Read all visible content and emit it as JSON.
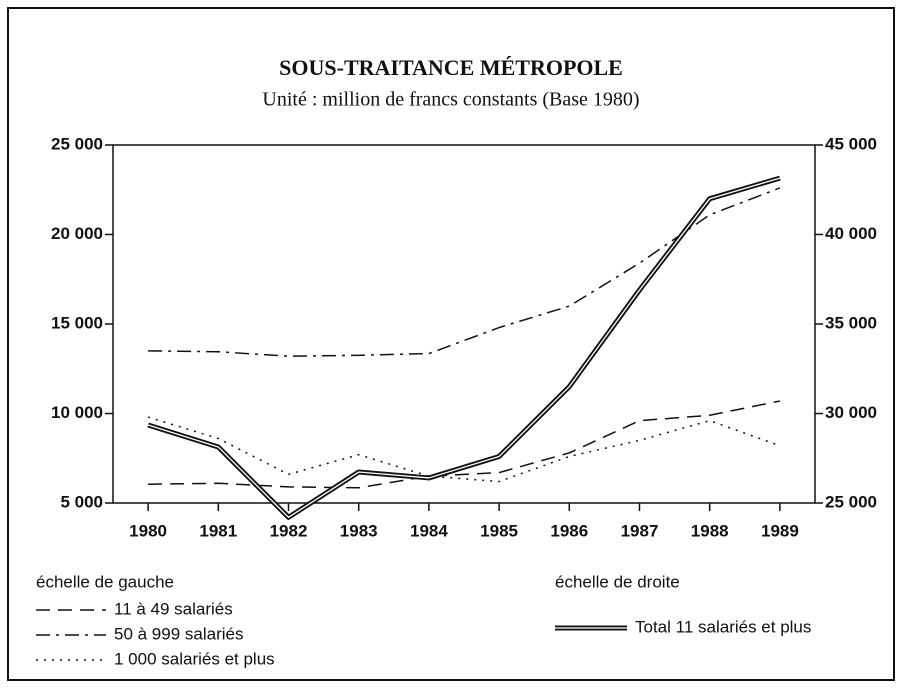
{
  "chart_data": {
    "type": "line",
    "title": "SOUS-TRAITANCE MÉTROPOLE",
    "subtitle": "Unité : million de francs constants (Base 1980)",
    "categories": [
      "1980",
      "1981",
      "1982",
      "1983",
      "1984",
      "1985",
      "1986",
      "1987",
      "1988",
      "1989"
    ],
    "legend_groups": [
      "échelle de gauche",
      "échelle de droite"
    ],
    "series": [
      {
        "name": "11 à 49 salariés",
        "color": "#111111",
        "dash": "dashed",
        "values": [
          6050,
          6100,
          5900,
          5850,
          6500,
          6700,
          7800,
          9600,
          9900,
          10700
        ]
      },
      {
        "name": "50 à 999 salariés",
        "color": "#111111",
        "dash": "dashdot",
        "values": [
          13500,
          13450,
          13200,
          13250,
          13350,
          14800,
          16000,
          18400,
          21100,
          22600
        ]
      },
      {
        "name": "1 000 salariés et plus",
        "color": "#111111",
        "dash": "dotted",
        "values": [
          9800,
          8600,
          6600,
          7700,
          6500,
          6200,
          7600,
          8500,
          9600,
          8200
        ]
      },
      {
        "name": "Total 11 salariés et plus",
        "color": "#111111",
        "dash": "double",
        "axis": "y2",
        "values": [
          29360,
          28130,
          24200,
          26730,
          26400,
          27600,
          31500,
          36900,
          42000,
          43150
        ]
      }
    ],
    "ylim": [
      5000,
      25000
    ],
    "yticks": [
      {
        "value": 5000,
        "label": "5 000"
      },
      {
        "value": 10000,
        "label": "10 000"
      },
      {
        "value": 15000,
        "label": "15 000"
      },
      {
        "value": 20000,
        "label": "20 000"
      },
      {
        "value": 25000,
        "label": "25 000"
      }
    ],
    "y2lim": [
      25000,
      45000
    ],
    "y2ticks": [
      {
        "value": 25000,
        "label": "25 000"
      },
      {
        "value": 30000,
        "label": "30 000"
      },
      {
        "value": 35000,
        "label": "35 000"
      },
      {
        "value": 40000,
        "label": "40 000"
      },
      {
        "value": 45000,
        "label": "45 000"
      }
    ]
  }
}
